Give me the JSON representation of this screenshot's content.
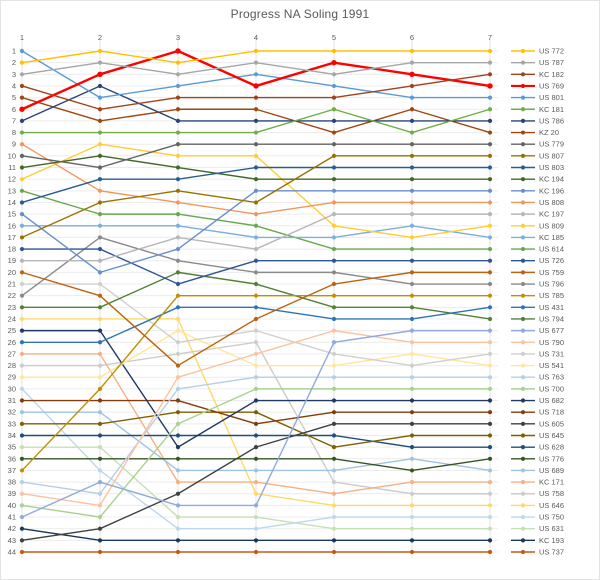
{
  "title": "Progress NA Soling 1991",
  "chart_data": {
    "type": "line",
    "variant": "bump-rank-progress",
    "x_axis": {
      "position": "top",
      "labels": [
        "1",
        "2",
        "3",
        "4",
        "5",
        "6",
        "7"
      ]
    },
    "y_axis": {
      "label_side": "left",
      "rank_min": 1,
      "rank_max": 44
    },
    "grid": true,
    "legend_position": "right",
    "colors": {
      "axis_text": "#595959",
      "grid_h": "#ececec",
      "grid_v": "#e3e3e3",
      "background": "#ffffff"
    },
    "series": [
      {
        "name": "US 772",
        "color": "#FFC000",
        "ranks": [
          2,
          1,
          2,
          1,
          1,
          1,
          1
        ]
      },
      {
        "name": "US 787",
        "color": "#A6A6A6",
        "ranks": [
          3,
          2,
          3,
          2,
          3,
          2,
          2
        ]
      },
      {
        "name": "KC 182",
        "color": "#A0421C",
        "ranks": [
          4,
          6,
          5,
          5,
          5,
          4,
          3
        ]
      },
      {
        "name": "US 769",
        "color": "#FF0000",
        "ranks": [
          6,
          3,
          1,
          4,
          2,
          3,
          4
        ],
        "thick": true
      },
      {
        "name": "US 801",
        "color": "#5B9BD5",
        "ranks": [
          1,
          5,
          4,
          3,
          4,
          5,
          5
        ]
      },
      {
        "name": "KC 181",
        "color": "#70AD47",
        "ranks": [
          8,
          8,
          8,
          8,
          6,
          8,
          6
        ]
      },
      {
        "name": "US 786",
        "color": "#264478",
        "ranks": [
          7,
          4,
          7,
          7,
          7,
          7,
          7
        ]
      },
      {
        "name": "KZ 20",
        "color": "#9E480E",
        "ranks": [
          5,
          7,
          6,
          6,
          8,
          6,
          8
        ]
      },
      {
        "name": "US 779",
        "color": "#636363",
        "ranks": [
          10,
          11,
          9,
          9,
          9,
          9,
          9
        ]
      },
      {
        "name": "US 807",
        "color": "#997300",
        "ranks": [
          17,
          14,
          13,
          14,
          10,
          10,
          10
        ]
      },
      {
        "name": "US 803",
        "color": "#255E91",
        "ranks": [
          14,
          12,
          12,
          11,
          11,
          11,
          11
        ]
      },
      {
        "name": "KC 194",
        "color": "#43682B",
        "ranks": [
          11,
          10,
          11,
          12,
          12,
          12,
          12
        ]
      },
      {
        "name": "KC 196",
        "color": "#698ED0",
        "ranks": [
          15,
          20,
          18,
          13,
          13,
          13,
          13
        ]
      },
      {
        "name": "US 808",
        "color": "#F1975A",
        "ranks": [
          9,
          13,
          14,
          15,
          14,
          14,
          14
        ]
      },
      {
        "name": "KC 197",
        "color": "#B7B7B7",
        "ranks": [
          19,
          19,
          17,
          18,
          15,
          15,
          15
        ]
      },
      {
        "name": "US 809",
        "color": "#FFCD33",
        "ranks": [
          12,
          9,
          10,
          10,
          16,
          17,
          16
        ]
      },
      {
        "name": "KC 185",
        "color": "#7CAFDD",
        "ranks": [
          16,
          16,
          16,
          17,
          17,
          16,
          17
        ]
      },
      {
        "name": "US 614",
        "color": "#6AA84F",
        "ranks": [
          13,
          15,
          15,
          16,
          18,
          18,
          18
        ]
      },
      {
        "name": "US 726",
        "color": "#2F5597",
        "ranks": [
          18,
          18,
          21,
          19,
          19,
          19,
          19
        ]
      },
      {
        "name": "US 759",
        "color": "#BC6211",
        "ranks": [
          20,
          22,
          28,
          24,
          21,
          20,
          20
        ]
      },
      {
        "name": "US 796",
        "color": "#8A8A8A",
        "ranks": [
          22,
          17,
          19,
          20,
          20,
          21,
          21
        ]
      },
      {
        "name": "US 785",
        "color": "#BF9000",
        "ranks": [
          37,
          30,
          22,
          22,
          22,
          22,
          22
        ]
      },
      {
        "name": "US 431",
        "color": "#2E75B6",
        "ranks": [
          26,
          26,
          23,
          23,
          24,
          24,
          23
        ]
      },
      {
        "name": "US 794",
        "color": "#538135",
        "ranks": [
          23,
          23,
          20,
          21,
          23,
          23,
          24
        ]
      },
      {
        "name": "US 677",
        "color": "#8FAADC",
        "ranks": [
          41,
          38,
          40,
          40,
          26,
          25,
          25
        ]
      },
      {
        "name": "US 790",
        "color": "#FBC39E",
        "ranks": [
          39,
          40,
          29,
          27,
          25,
          26,
          26
        ]
      },
      {
        "name": "US 731",
        "color": "#D0CECE",
        "ranks": [
          21,
          21,
          26,
          25,
          27,
          28,
          27
        ]
      },
      {
        "name": "US 541",
        "color": "#FFE699",
        "ranks": [
          29,
          29,
          25,
          28,
          28,
          27,
          28
        ]
      },
      {
        "name": "US 763",
        "color": "#B4CFE8",
        "ranks": [
          38,
          39,
          30,
          29,
          29,
          29,
          29
        ]
      },
      {
        "name": "US 700",
        "color": "#A9D18E",
        "ranks": [
          40,
          41,
          33,
          30,
          30,
          30,
          30
        ]
      },
      {
        "name": "US 682",
        "color": "#1F3864",
        "ranks": [
          25,
          25,
          35,
          31,
          31,
          31,
          31
        ]
      },
      {
        "name": "US 718",
        "color": "#843C0C",
        "ranks": [
          31,
          31,
          31,
          33,
          32,
          32,
          32
        ]
      },
      {
        "name": "US 605",
        "color": "#404040",
        "ranks": [
          43,
          42,
          39,
          35,
          33,
          33,
          33
        ]
      },
      {
        "name": "US 645",
        "color": "#7F6000",
        "ranks": [
          33,
          33,
          32,
          32,
          35,
          34,
          34
        ]
      },
      {
        "name": "US 628",
        "color": "#1F4E79",
        "ranks": [
          34,
          34,
          34,
          34,
          34,
          35,
          35
        ]
      },
      {
        "name": "US 776",
        "color": "#375623",
        "ranks": [
          36,
          36,
          36,
          36,
          36,
          37,
          36
        ]
      },
      {
        "name": "US 689",
        "color": "#9DC3E6",
        "ranks": [
          32,
          32,
          37,
          37,
          37,
          36,
          37
        ]
      },
      {
        "name": "KC 171",
        "color": "#F4B183",
        "ranks": [
          27,
          27,
          38,
          38,
          39,
          38,
          38
        ]
      },
      {
        "name": "US 758",
        "color": "#CCCCCC",
        "ranks": [
          28,
          28,
          27,
          26,
          38,
          39,
          39
        ]
      },
      {
        "name": "US 646",
        "color": "#FFD966",
        "ranks": [
          24,
          24,
          24,
          39,
          40,
          40,
          40
        ]
      },
      {
        "name": "US 750",
        "color": "#BDD7EE",
        "ranks": [
          30,
          37,
          42,
          42,
          41,
          41,
          41
        ]
      },
      {
        "name": "US 631",
        "color": "#C6E0B4",
        "ranks": [
          35,
          35,
          41,
          41,
          42,
          42,
          42
        ]
      },
      {
        "name": "KC 193",
        "color": "#17375E",
        "ranks": [
          42,
          43,
          43,
          43,
          43,
          43,
          43
        ]
      },
      {
        "name": "US 737",
        "color": "#C55A11",
        "ranks": [
          44,
          44,
          44,
          44,
          44,
          44,
          44
        ]
      }
    ]
  }
}
